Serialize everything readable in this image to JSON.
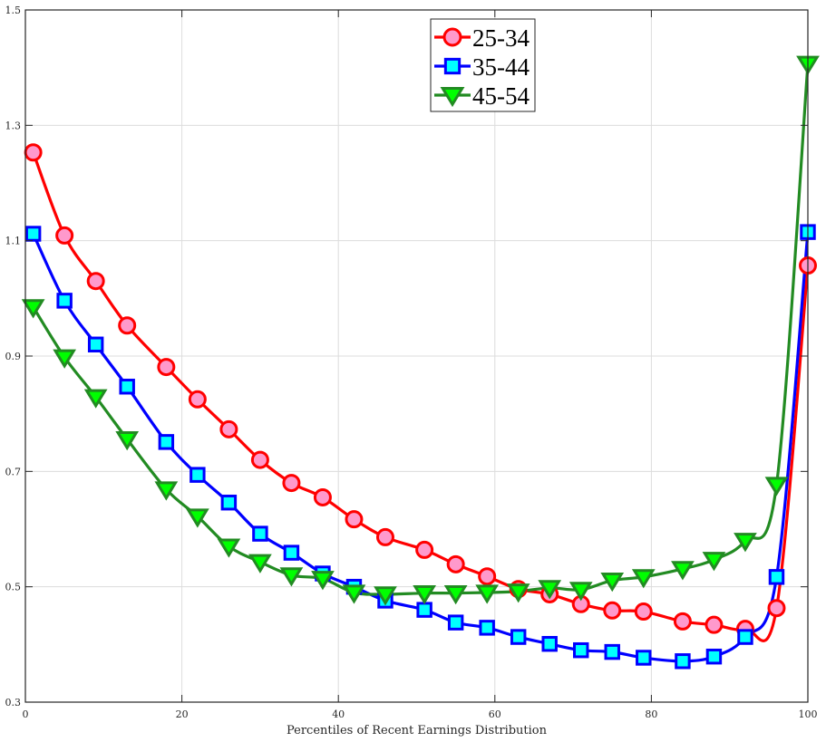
{
  "chart_data": {
    "type": "line",
    "title": "",
    "xlabel": "Percentiles of Recent Earnings Distribution",
    "ylabel": "",
    "xlim": [
      0,
      100
    ],
    "ylim": [
      0.3,
      1.5
    ],
    "xticks": [
      0,
      20,
      40,
      60,
      80,
      100
    ],
    "yticks": [
      0.3,
      0.5,
      0.7,
      0.9,
      1.1,
      1.3,
      1.5
    ],
    "xtick_labels": [
      "0",
      "20",
      "40",
      "60",
      "80",
      "100"
    ],
    "ytick_labels": [
      "0.3",
      "0.5",
      "0.7",
      "0.9",
      "1.1",
      "1.3",
      "1.5"
    ],
    "grid": true,
    "legend_position": "top-center",
    "x": [
      1,
      5,
      9,
      13,
      18,
      22,
      26,
      30,
      34,
      38,
      42,
      46,
      51,
      55,
      59,
      63,
      67,
      71,
      75,
      79,
      84,
      88,
      92,
      96,
      100
    ],
    "series": [
      {
        "name": "25-34",
        "line_color": "#ff0000",
        "marker": "circle",
        "marker_face": "#ff99cc",
        "marker_edge": "#ff0000",
        "values": [
          1.253,
          1.109,
          1.03,
          0.953,
          0.881,
          0.825,
          0.773,
          0.72,
          0.68,
          0.655,
          0.617,
          0.586,
          0.564,
          0.539,
          0.518,
          0.496,
          0.487,
          0.47,
          0.459,
          0.457,
          0.44,
          0.434,
          0.427,
          0.463,
          1.057
        ]
      },
      {
        "name": "35-44",
        "line_color": "#0000ff",
        "marker": "square",
        "marker_face": "#00ffff",
        "marker_edge": "#0000ff",
        "values": [
          1.112,
          0.996,
          0.92,
          0.847,
          0.751,
          0.694,
          0.646,
          0.592,
          0.559,
          0.523,
          0.5,
          0.476,
          0.46,
          0.438,
          0.429,
          0.413,
          0.401,
          0.39,
          0.387,
          0.377,
          0.371,
          0.379,
          0.413,
          0.517,
          1.115
        ]
      },
      {
        "name": "45-54",
        "line_color": "#228b22",
        "marker": "triangle-down",
        "marker_face": "#00ff00",
        "marker_edge": "#228b22",
        "values": [
          0.985,
          0.898,
          0.829,
          0.756,
          0.669,
          0.622,
          0.57,
          0.543,
          0.52,
          0.514,
          0.49,
          0.487,
          0.489,
          0.489,
          0.49,
          0.492,
          0.498,
          0.495,
          0.511,
          0.517,
          0.531,
          0.547,
          0.58,
          0.677,
          1.407
        ]
      }
    ]
  }
}
